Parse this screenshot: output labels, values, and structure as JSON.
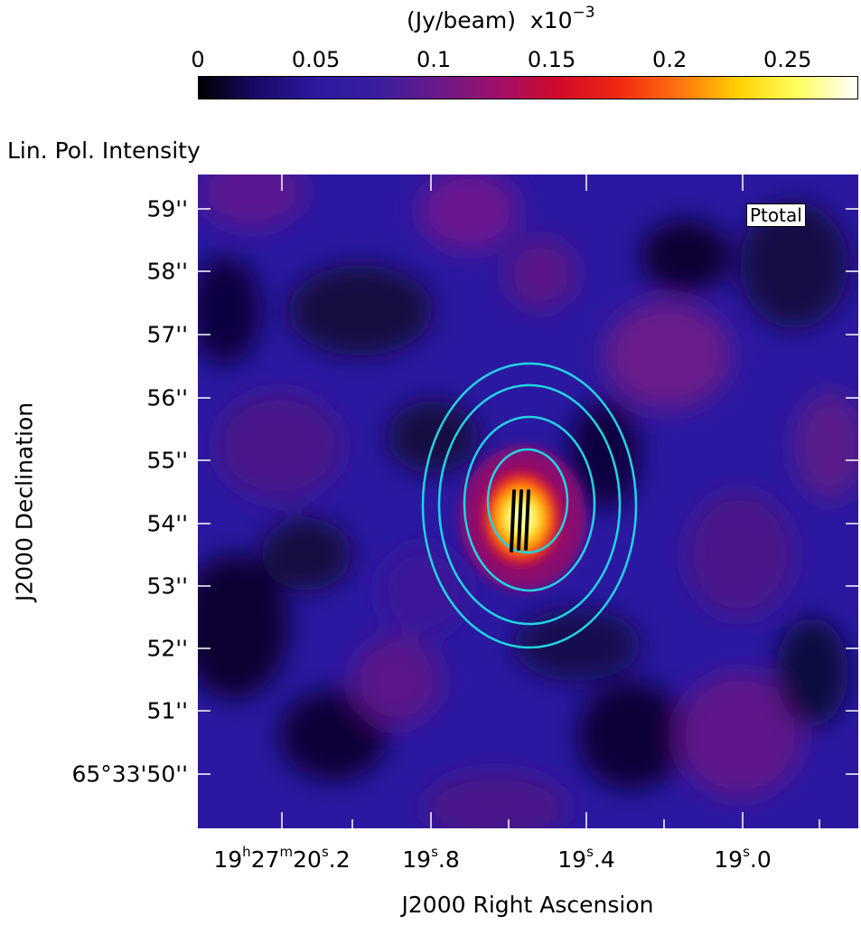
{
  "colorbar": {
    "units": "(Jy/beam)  x10",
    "exponent": "−3",
    "ticks": [
      "0",
      "0.05",
      "0.1",
      "0.15",
      "0.2",
      "0.25"
    ],
    "range": [
      0,
      0.28
    ],
    "colormap": [
      "#000000",
      "#1a0a6a",
      "#2d1aa0",
      "#3a1e9e",
      "#6a1a8a",
      "#a0106a",
      "#d00a2a",
      "#f02810",
      "#ff7010",
      "#ffd000",
      "#ffff60",
      "#ffffff"
    ]
  },
  "panel_label": "Lin. Pol. Intensity",
  "legend": "Ptotal",
  "chart_data": {
    "type": "heatmap",
    "title": "Lin. Pol. Intensity",
    "xlabel": "J2000 Right Ascension",
    "ylabel": "J2000 Declination",
    "x_ticks": [
      {
        "main": "19",
        "h": "h",
        "m_val": "27",
        "m": "m",
        "s_val": "20",
        "s": "s",
        "frac": ".2"
      },
      {
        "main": "19",
        "s": "s",
        "frac": ".8"
      },
      {
        "main": "19",
        "s": "s",
        "frac": ".4"
      },
      {
        "main": "19",
        "s": "s",
        "frac": ".0"
      }
    ],
    "y_ticks": [
      "59''",
      "58''",
      "57''",
      "56''",
      "55''",
      "54''",
      "53''",
      "52''",
      "51''",
      "65°33'50''"
    ],
    "source_peak": {
      "ra": "19h27m19.53s",
      "dec": "65°33'54.0''",
      "value": 0.28
    },
    "contour_color": "#22d3e0",
    "contour_levels": 4,
    "vector_color": "#000000",
    "vector_count": 3,
    "colorbar_units": "Jy/beam x10^-3",
    "colorbar_range": [
      0,
      0.28
    ]
  }
}
